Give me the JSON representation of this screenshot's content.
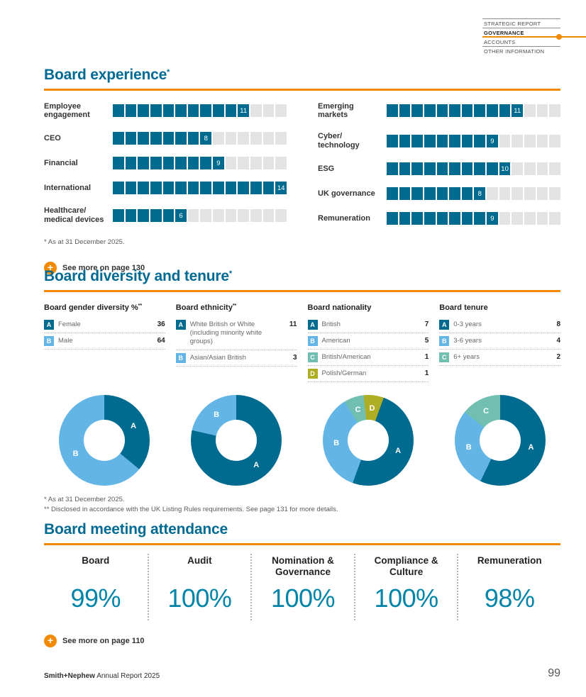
{
  "colors": {
    "accent_orange": "#F18A00",
    "heading_teal": "#006A92",
    "bar_fill": "#006A8F",
    "bar_empty": "#E3E3E3",
    "value_teal": "#0084A8",
    "light_blue": "#62B5E5",
    "seafoam": "#70BFB0",
    "olive": "#AFAD23"
  },
  "nav": {
    "items": [
      {
        "label": "STRATEGIC REPORT",
        "active": false
      },
      {
        "label": "GOVERNANCE",
        "active": true
      },
      {
        "label": "ACCOUNTS",
        "active": false
      },
      {
        "label": "OTHER INFORMATION",
        "active": false
      }
    ]
  },
  "board_experience": {
    "title": "Board experience",
    "marker": "*",
    "max": 14,
    "left": [
      {
        "label": "Employee engagement",
        "value": 11
      },
      {
        "label": "CEO",
        "value": 8
      },
      {
        "label": "Financial",
        "value": 9
      },
      {
        "label": "International",
        "value": 14
      },
      {
        "label": "Healthcare/\nmedical devices",
        "value": 6
      }
    ],
    "right": [
      {
        "label": "Emerging markets",
        "value": 11
      },
      {
        "label": "Cyber/\ntechnology",
        "value": 9
      },
      {
        "label": "ESG",
        "value": 10
      },
      {
        "label": "UK governance",
        "value": 8
      },
      {
        "label": "Remuneration",
        "value": 9
      }
    ],
    "footnote": "*  As at 31 December 2025.",
    "see_more": "See more on page 130"
  },
  "board_diversity": {
    "title": "Board diversity and tenure",
    "marker": "*",
    "charts": [
      {
        "title": "Board gender diversity %",
        "marker": "**",
        "type": "donut",
        "start": 0,
        "segments": [
          {
            "key": "A",
            "label": "Female",
            "value": 36,
            "color": "#006A8F"
          },
          {
            "key": "B",
            "label": "Male",
            "value": 64,
            "color": "#62B5E5"
          }
        ]
      },
      {
        "title": "Board ethnicity",
        "marker": "**",
        "type": "donut",
        "start": 0,
        "segments": [
          {
            "key": "A",
            "label": "White British or White (including minority white groups)",
            "value": 11,
            "color": "#006A8F"
          },
          {
            "key": "B",
            "label": "Asian/Asian British",
            "value": 3,
            "color": "#62B5E5"
          }
        ]
      },
      {
        "title": "Board nationality",
        "marker": "",
        "type": "donut",
        "start": 20,
        "segments": [
          {
            "key": "A",
            "label": "British",
            "value": 7,
            "color": "#006A8F"
          },
          {
            "key": "B",
            "label": "American",
            "value": 5,
            "color": "#62B5E5"
          },
          {
            "key": "C",
            "label": "British/American",
            "value": 1,
            "color": "#70BFB0"
          },
          {
            "key": "D",
            "label": "Polish/German",
            "value": 1,
            "color": "#AFAD23"
          }
        ]
      },
      {
        "title": "Board tenure",
        "marker": "",
        "type": "donut",
        "start": 0,
        "segments": [
          {
            "key": "A",
            "label": "0-3 years",
            "value": 8,
            "color": "#006A8F"
          },
          {
            "key": "B",
            "label": "3-6 years",
            "value": 4,
            "color": "#62B5E5"
          },
          {
            "key": "C",
            "label": "6+ years",
            "value": 2,
            "color": "#70BFB0"
          }
        ]
      }
    ],
    "footnotes": [
      "*  As at 31 December 2025.",
      "** Disclosed in accordance with the UK Listing Rules requirements. See page 131 for more details."
    ]
  },
  "attendance": {
    "title": "Board meeting attendance",
    "columns": [
      {
        "label": "Board",
        "value": "99%"
      },
      {
        "label": "Audit",
        "value": "100%"
      },
      {
        "label": "Nomination & Governance",
        "value": "100%"
      },
      {
        "label": "Compliance & Culture",
        "value": "100%"
      },
      {
        "label": "Remuneration",
        "value": "98%"
      }
    ],
    "see_more": "See more on page 110"
  },
  "footer": {
    "brand": "Smith+Nephew",
    "text": " Annual Report 2025",
    "page": "99"
  }
}
